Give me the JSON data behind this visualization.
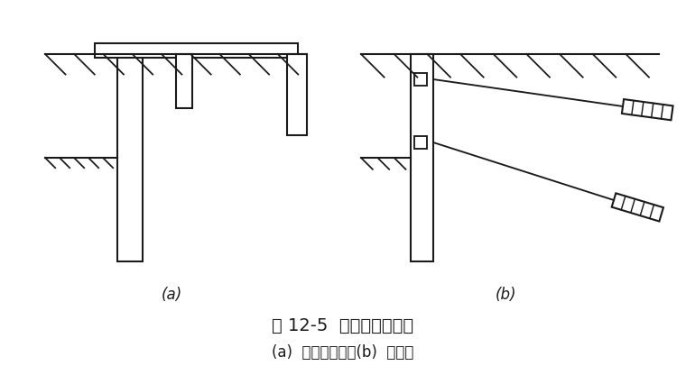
{
  "background_color": "#ffffff",
  "line_color": "#1a1a1a",
  "title": "图 12-5  拉锚式支护结构",
  "subtitle": "(a)  地面拉锚式；(b)  锚杆式",
  "label_a": "(a)",
  "label_b": "(b)",
  "title_fontsize": 14,
  "subtitle_fontsize": 12,
  "label_fontsize": 12
}
